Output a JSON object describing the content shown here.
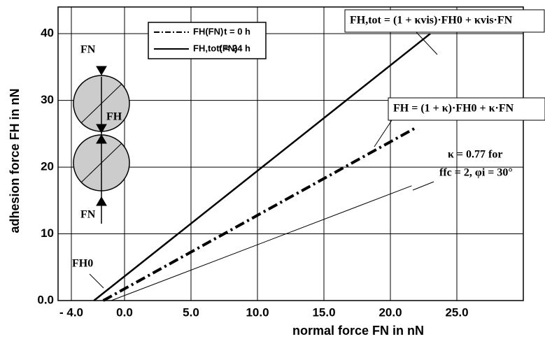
{
  "chart_data": {
    "type": "line",
    "x_label": "normal force  FN in nN",
    "y_label": "adhesion force  FH in nN",
    "xlim": [
      -5,
      30
    ],
    "ylim": [
      0,
      44
    ],
    "xticks": [
      {
        "value": -4,
        "label": "- 4.0"
      },
      {
        "value": 0,
        "label": "0.0"
      },
      {
        "value": 5,
        "label": "5.0"
      },
      {
        "value": 10,
        "label": "10.0"
      },
      {
        "value": 15,
        "label": "15.0"
      },
      {
        "value": 20,
        "label": "20.0"
      },
      {
        "value": 25,
        "label": "25.0"
      }
    ],
    "yticks": [
      {
        "value": 0,
        "label": "0.0"
      },
      10,
      20,
      30,
      40
    ],
    "grid": true,
    "series": [
      {
        "name": "FH(FN)",
        "time": "t = 0 h",
        "color": "#000000",
        "style": "dashdot",
        "width": 4,
        "x": [
          -1.6,
          22
        ],
        "values": [
          0,
          26
        ]
      },
      {
        "name": "FH,tot(FN)",
        "time": "t = 24 h",
        "color": "#000000",
        "style": "solid",
        "width": 2.5,
        "x": [
          -2.3,
          23
        ],
        "values": [
          0,
          40
        ]
      },
      {
        "color": "#000000",
        "style": "solid",
        "width": 1,
        "x": [
          -1,
          21.6
        ],
        "values": [
          0,
          17.2
        ]
      }
    ],
    "annotations": {
      "formula_tot": "FH,tot = (1 + κvis)·FH0 + κvis·FN",
      "formula": "FH = (1 + κ)·FH0 + κ·FN",
      "kappa": "κ = 0.77 for",
      "conditions": "ffc = 2, φi = 30°",
      "fn_top": "FN",
      "fn_bottom": "FN",
      "fh": "FH",
      "fh0": "FH0"
    }
  }
}
